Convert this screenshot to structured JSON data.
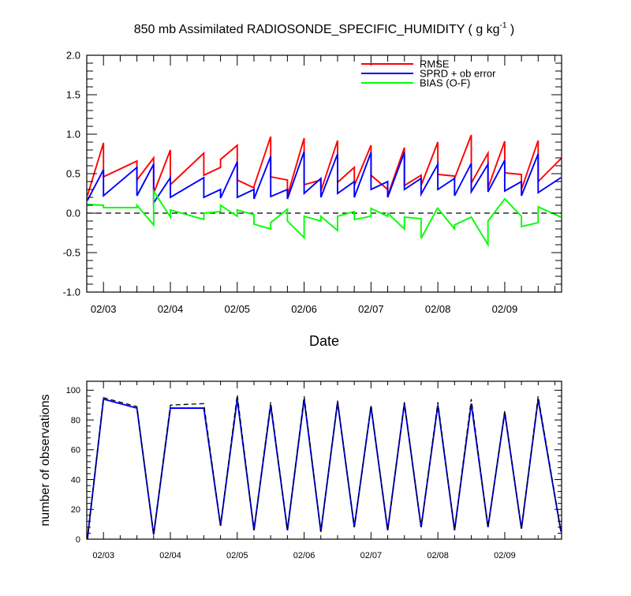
{
  "chart_data": [
    {
      "type": "line",
      "title": "850 mb Assimilated RADIOSONDE_SPECIFIC_HUMIDITY ( g kg",
      "title_sup": "-1",
      "title_end": " )",
      "xlabel": "Date",
      "ylabel": "",
      "ylim": [
        -1.0,
        2.0
      ],
      "yticks": [
        -1.0,
        -0.5,
        0.0,
        0.5,
        1.0,
        1.5,
        2.0
      ],
      "ytick_labels": [
        "-1.0",
        "-0.5",
        "0.0",
        "0.5",
        "1.0",
        "1.5",
        "2.0"
      ],
      "xlim": [
        2.75,
        9.85
      ],
      "xticks": [
        3.0,
        4.0,
        5.0,
        6.0,
        7.0,
        8.0,
        9.0
      ],
      "xtick_labels": [
        "02/03",
        "02/04",
        "02/05",
        "02/06",
        "02/07",
        "02/08",
        "02/09"
      ],
      "zero_line": true,
      "legend_position": "top-right",
      "series": [
        {
          "name": "RMSE",
          "color": "#ff0000",
          "points": [
            [
              2.76,
              0.22
            ],
            [
              3.0,
              0.89
            ],
            [
              3.0,
              0.46
            ],
            [
              3.5,
              0.66
            ],
            [
              3.5,
              0.42
            ],
            [
              3.75,
              0.7
            ],
            [
              3.75,
              0.25
            ],
            [
              4.0,
              0.8
            ],
            [
              4.0,
              0.36
            ],
            [
              4.5,
              0.76
            ],
            [
              4.5,
              0.48
            ],
            [
              4.75,
              0.58
            ],
            [
              4.75,
              0.68
            ],
            [
              5.0,
              0.86
            ],
            [
              5.0,
              0.42
            ],
            [
              5.25,
              0.32
            ],
            [
              5.25,
              0.34
            ],
            [
              5.5,
              0.97
            ],
            [
              5.5,
              0.46
            ],
            [
              5.75,
              0.42
            ],
            [
              5.75,
              0.22
            ],
            [
              6.0,
              0.95
            ],
            [
              6.0,
              0.36
            ],
            [
              6.25,
              0.42
            ],
            [
              6.25,
              0.28
            ],
            [
              6.5,
              0.92
            ],
            [
              6.5,
              0.39
            ],
            [
              6.75,
              0.58
            ],
            [
              6.75,
              0.35
            ],
            [
              7.0,
              0.86
            ],
            [
              7.0,
              0.48
            ],
            [
              7.25,
              0.3
            ],
            [
              7.25,
              0.22
            ],
            [
              7.5,
              0.83
            ],
            [
              7.5,
              0.35
            ],
            [
              7.75,
              0.48
            ],
            [
              7.75,
              0.35
            ],
            [
              8.0,
              0.9
            ],
            [
              8.0,
              0.49
            ],
            [
              8.25,
              0.47
            ],
            [
              8.25,
              0.44
            ],
            [
              8.5,
              0.99
            ],
            [
              8.5,
              0.38
            ],
            [
              8.75,
              0.76
            ],
            [
              8.75,
              0.32
            ],
            [
              9.0,
              0.91
            ],
            [
              9.0,
              0.51
            ],
            [
              9.25,
              0.49
            ],
            [
              9.25,
              0.3
            ],
            [
              9.5,
              0.92
            ],
            [
              9.5,
              0.4
            ],
            [
              9.84,
              0.69
            ]
          ]
        },
        {
          "name": "SPRD + ob error",
          "color": "#0000ff",
          "points": [
            [
              2.76,
              0.16
            ],
            [
              3.0,
              0.55
            ],
            [
              3.0,
              0.22
            ],
            [
              3.5,
              0.58
            ],
            [
              3.5,
              0.22
            ],
            [
              3.75,
              0.62
            ],
            [
              3.75,
              0.13
            ],
            [
              4.0,
              0.45
            ],
            [
              4.0,
              0.2
            ],
            [
              4.5,
              0.45
            ],
            [
              4.5,
              0.2
            ],
            [
              4.75,
              0.3
            ],
            [
              4.75,
              0.19
            ],
            [
              5.0,
              0.65
            ],
            [
              5.0,
              0.2
            ],
            [
              5.25,
              0.3
            ],
            [
              5.25,
              0.18
            ],
            [
              5.5,
              0.72
            ],
            [
              5.5,
              0.21
            ],
            [
              5.75,
              0.3
            ],
            [
              5.75,
              0.18
            ],
            [
              6.0,
              0.78
            ],
            [
              6.0,
              0.25
            ],
            [
              6.25,
              0.44
            ],
            [
              6.25,
              0.2
            ],
            [
              6.5,
              0.75
            ],
            [
              6.5,
              0.25
            ],
            [
              6.75,
              0.4
            ],
            [
              6.75,
              0.2
            ],
            [
              7.0,
              0.77
            ],
            [
              7.0,
              0.3
            ],
            [
              7.25,
              0.4
            ],
            [
              7.25,
              0.2
            ],
            [
              7.5,
              0.77
            ],
            [
              7.5,
              0.3
            ],
            [
              7.75,
              0.44
            ],
            [
              7.75,
              0.24
            ],
            [
              8.0,
              0.62
            ],
            [
              8.0,
              0.3
            ],
            [
              8.25,
              0.44
            ],
            [
              8.25,
              0.22
            ],
            [
              8.5,
              0.63
            ],
            [
              8.5,
              0.27
            ],
            [
              8.75,
              0.62
            ],
            [
              8.75,
              0.27
            ],
            [
              9.0,
              0.67
            ],
            [
              9.0,
              0.28
            ],
            [
              9.25,
              0.4
            ],
            [
              9.25,
              0.22
            ],
            [
              9.5,
              0.75
            ],
            [
              9.5,
              0.26
            ],
            [
              9.84,
              0.45
            ]
          ]
        },
        {
          "name": "BIAS (O-F)",
          "color": "#00ff00",
          "points": [
            [
              2.76,
              0.11
            ],
            [
              3.0,
              0.1
            ],
            [
              3.0,
              0.07
            ],
            [
              3.5,
              0.07
            ],
            [
              3.5,
              0.1
            ],
            [
              3.75,
              -0.15
            ],
            [
              3.75,
              0.28
            ],
            [
              4.0,
              -0.05
            ],
            [
              4.0,
              0.04
            ],
            [
              4.5,
              -0.08
            ],
            [
              4.5,
              0.0
            ],
            [
              4.75,
              0.02
            ],
            [
              4.75,
              0.1
            ],
            [
              5.0,
              -0.04
            ],
            [
              5.0,
              0.04
            ],
            [
              5.25,
              -0.02
            ],
            [
              5.25,
              -0.14
            ],
            [
              5.5,
              -0.2
            ],
            [
              5.5,
              -0.12
            ],
            [
              5.75,
              0.05
            ],
            [
              5.75,
              -0.1
            ],
            [
              6.0,
              -0.31
            ],
            [
              6.0,
              -0.04
            ],
            [
              6.25,
              -0.1
            ],
            [
              6.25,
              -0.04
            ],
            [
              6.5,
              -0.22
            ],
            [
              6.5,
              -0.04
            ],
            [
              6.75,
              0.02
            ],
            [
              6.75,
              -0.08
            ],
            [
              7.0,
              -0.04
            ],
            [
              7.0,
              0.06
            ],
            [
              7.25,
              -0.04
            ],
            [
              7.25,
              0.0
            ],
            [
              7.5,
              -0.2
            ],
            [
              7.5,
              -0.05
            ],
            [
              7.75,
              -0.07
            ],
            [
              7.75,
              -0.32
            ],
            [
              8.0,
              0.07
            ],
            [
              8.0,
              0.06
            ],
            [
              8.25,
              -0.2
            ],
            [
              8.25,
              -0.15
            ],
            [
              8.5,
              -0.05
            ],
            [
              8.5,
              -0.05
            ],
            [
              8.75,
              -0.4
            ],
            [
              8.75,
              -0.1
            ],
            [
              9.0,
              0.18
            ],
            [
              9.0,
              0.18
            ],
            [
              9.25,
              -0.04
            ],
            [
              9.25,
              -0.17
            ],
            [
              9.5,
              -0.12
            ],
            [
              9.5,
              0.08
            ],
            [
              9.84,
              -0.05
            ]
          ]
        }
      ]
    },
    {
      "type": "line",
      "title": "",
      "xlabel": "",
      "ylabel": "number of observations",
      "ylim": [
        0,
        106
      ],
      "yticks": [
        0,
        20,
        40,
        60,
        80,
        100
      ],
      "ytick_labels": [
        "0",
        "20",
        "40",
        "60",
        "80",
        "100"
      ],
      "xlim": [
        2.75,
        9.85
      ],
      "xticks": [
        3.0,
        4.0,
        5.0,
        6.0,
        7.0,
        8.0,
        9.0
      ],
      "xtick_labels": [
        "02/03",
        "02/04",
        "02/05",
        "02/06",
        "02/07",
        "02/08",
        "02/09"
      ],
      "series": [
        {
          "color": "#0000ff",
          "style": "solid",
          "points": [
            [
              2.76,
              0
            ],
            [
              3.0,
              94
            ],
            [
              3.5,
              88
            ],
            [
              3.75,
              3
            ],
            [
              4.0,
              88
            ],
            [
              4.5,
              88
            ],
            [
              4.75,
              9
            ],
            [
              5.0,
              94
            ],
            [
              5.25,
              6
            ],
            [
              5.5,
              90
            ],
            [
              5.75,
              6
            ],
            [
              6.0,
              94
            ],
            [
              6.25,
              5
            ],
            [
              6.5,
              92
            ],
            [
              6.75,
              8
            ],
            [
              7.0,
              89
            ],
            [
              7.25,
              6
            ],
            [
              7.5,
              91
            ],
            [
              7.75,
              8
            ],
            [
              8.0,
              90
            ],
            [
              8.25,
              6
            ],
            [
              8.5,
              91
            ],
            [
              8.75,
              8
            ],
            [
              9.0,
              85
            ],
            [
              9.25,
              7
            ],
            [
              9.5,
              94
            ],
            [
              9.84,
              5
            ]
          ]
        },
        {
          "color": "#000000",
          "style": "dashed",
          "points": [
            [
              2.76,
              0
            ],
            [
              3.0,
              95
            ],
            [
              3.5,
              89
            ],
            [
              3.75,
              3
            ],
            [
              4.0,
              90
            ],
            [
              4.5,
              91
            ],
            [
              4.75,
              9
            ],
            [
              5.0,
              97
            ],
            [
              5.25,
              6
            ],
            [
              5.5,
              92
            ],
            [
              5.75,
              6
            ],
            [
              6.0,
              96
            ],
            [
              6.25,
              5
            ],
            [
              6.5,
              93
            ],
            [
              6.75,
              8
            ],
            [
              7.0,
              90
            ],
            [
              7.25,
              6
            ],
            [
              7.5,
              92
            ],
            [
              7.75,
              8
            ],
            [
              8.0,
              92
            ],
            [
              8.25,
              6
            ],
            [
              8.5,
              94
            ],
            [
              8.75,
              8
            ],
            [
              9.0,
              86
            ],
            [
              9.25,
              7
            ],
            [
              9.5,
              96
            ],
            [
              9.84,
              5
            ]
          ]
        }
      ]
    }
  ]
}
